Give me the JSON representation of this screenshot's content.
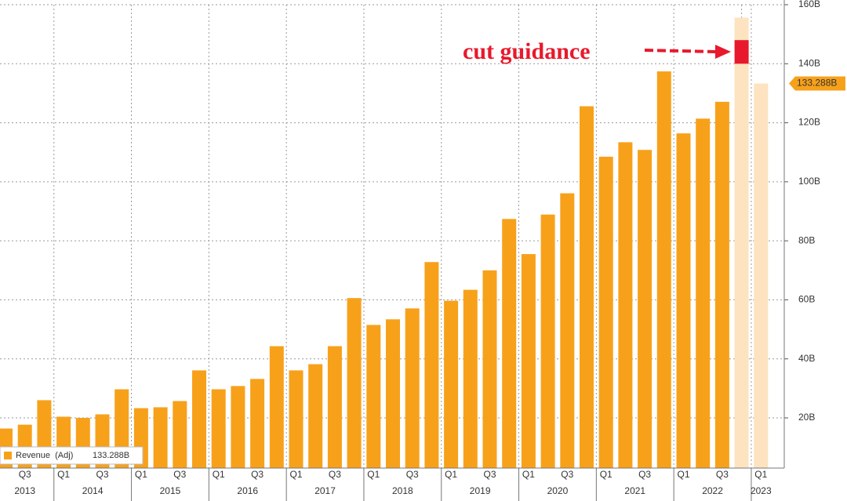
{
  "chart_data": {
    "type": "bar",
    "annotation": "cut guidance",
    "categories": [
      null,
      "Q3",
      null,
      "Q1",
      null,
      "Q3",
      null,
      "Q1",
      null,
      "Q3",
      null,
      "Q1",
      null,
      "Q3",
      null,
      "Q1",
      null,
      "Q3",
      null,
      "Q1",
      null,
      "Q3",
      null,
      "Q1",
      null,
      "Q3",
      null,
      "Q1",
      null,
      "Q3",
      null,
      "Q1",
      null,
      "Q3",
      null,
      "Q1",
      null,
      "Q3",
      null,
      "Q1"
    ],
    "years": [
      "2013",
      "2014",
      "2015",
      "2016",
      "2017",
      "2018",
      "2019",
      "2020",
      "2021",
      "2022",
      "2023"
    ],
    "series": [
      {
        "name": "Revenue  (Adj)",
        "color": "#f7a11a",
        "values": [
          16.4,
          17.7,
          26,
          20.4,
          20,
          21.2,
          29.7,
          23.3,
          23.6,
          25.7,
          36.1,
          29.7,
          30.8,
          33.2,
          44.3,
          36.1,
          38.2,
          44.3,
          60.6,
          51.5,
          53.4,
          57.1,
          72.8,
          59.7,
          63.4,
          70,
          87.4,
          75.5,
          88.9,
          96.1,
          125.6,
          108.5,
          113.4,
          110.8,
          137.4,
          116.4,
          121.4,
          127.1,
          null,
          null
        ]
      },
      {
        "color": "#fde3c0",
        "values": [
          null,
          null,
          null,
          null,
          null,
          null,
          null,
          null,
          null,
          null,
          null,
          null,
          null,
          null,
          null,
          null,
          null,
          null,
          null,
          null,
          null,
          null,
          null,
          null,
          null,
          null,
          null,
          null,
          null,
          null,
          null,
          null,
          null,
          null,
          null,
          null,
          null,
          null,
          155.6,
          133.288
        ],
        "value_labels": [
          null,
          null,
          null,
          null,
          null,
          null,
          null,
          null,
          null,
          null,
          null,
          null,
          null,
          null,
          null,
          null,
          null,
          null,
          null,
          null,
          null,
          null,
          null,
          null,
          null,
          null,
          null,
          null,
          null,
          null,
          null,
          null,
          null,
          null,
          null,
          null,
          null,
          null,
          null,
          "133.288B"
        ]
      }
    ],
    "legend_value": "133.288B",
    "guidance_range": [
      140,
      148
    ],
    "guidance_color": "#e8192c",
    "last_label_color": "#f7a11a",
    "ylim": [
      3,
      160
    ],
    "yticks": [
      {
        "value": 20,
        "label": "20B"
      },
      {
        "value": 40,
        "label": "40B"
      },
      {
        "value": 60,
        "label": "60B"
      },
      {
        "value": 80,
        "label": "80B"
      },
      {
        "value": 100,
        "label": "100B"
      },
      {
        "value": 120,
        "label": "120B"
      },
      {
        "value": 140,
        "label": "140B"
      },
      {
        "value": 160,
        "label": "160B"
      }
    ],
    "grid": true
  }
}
